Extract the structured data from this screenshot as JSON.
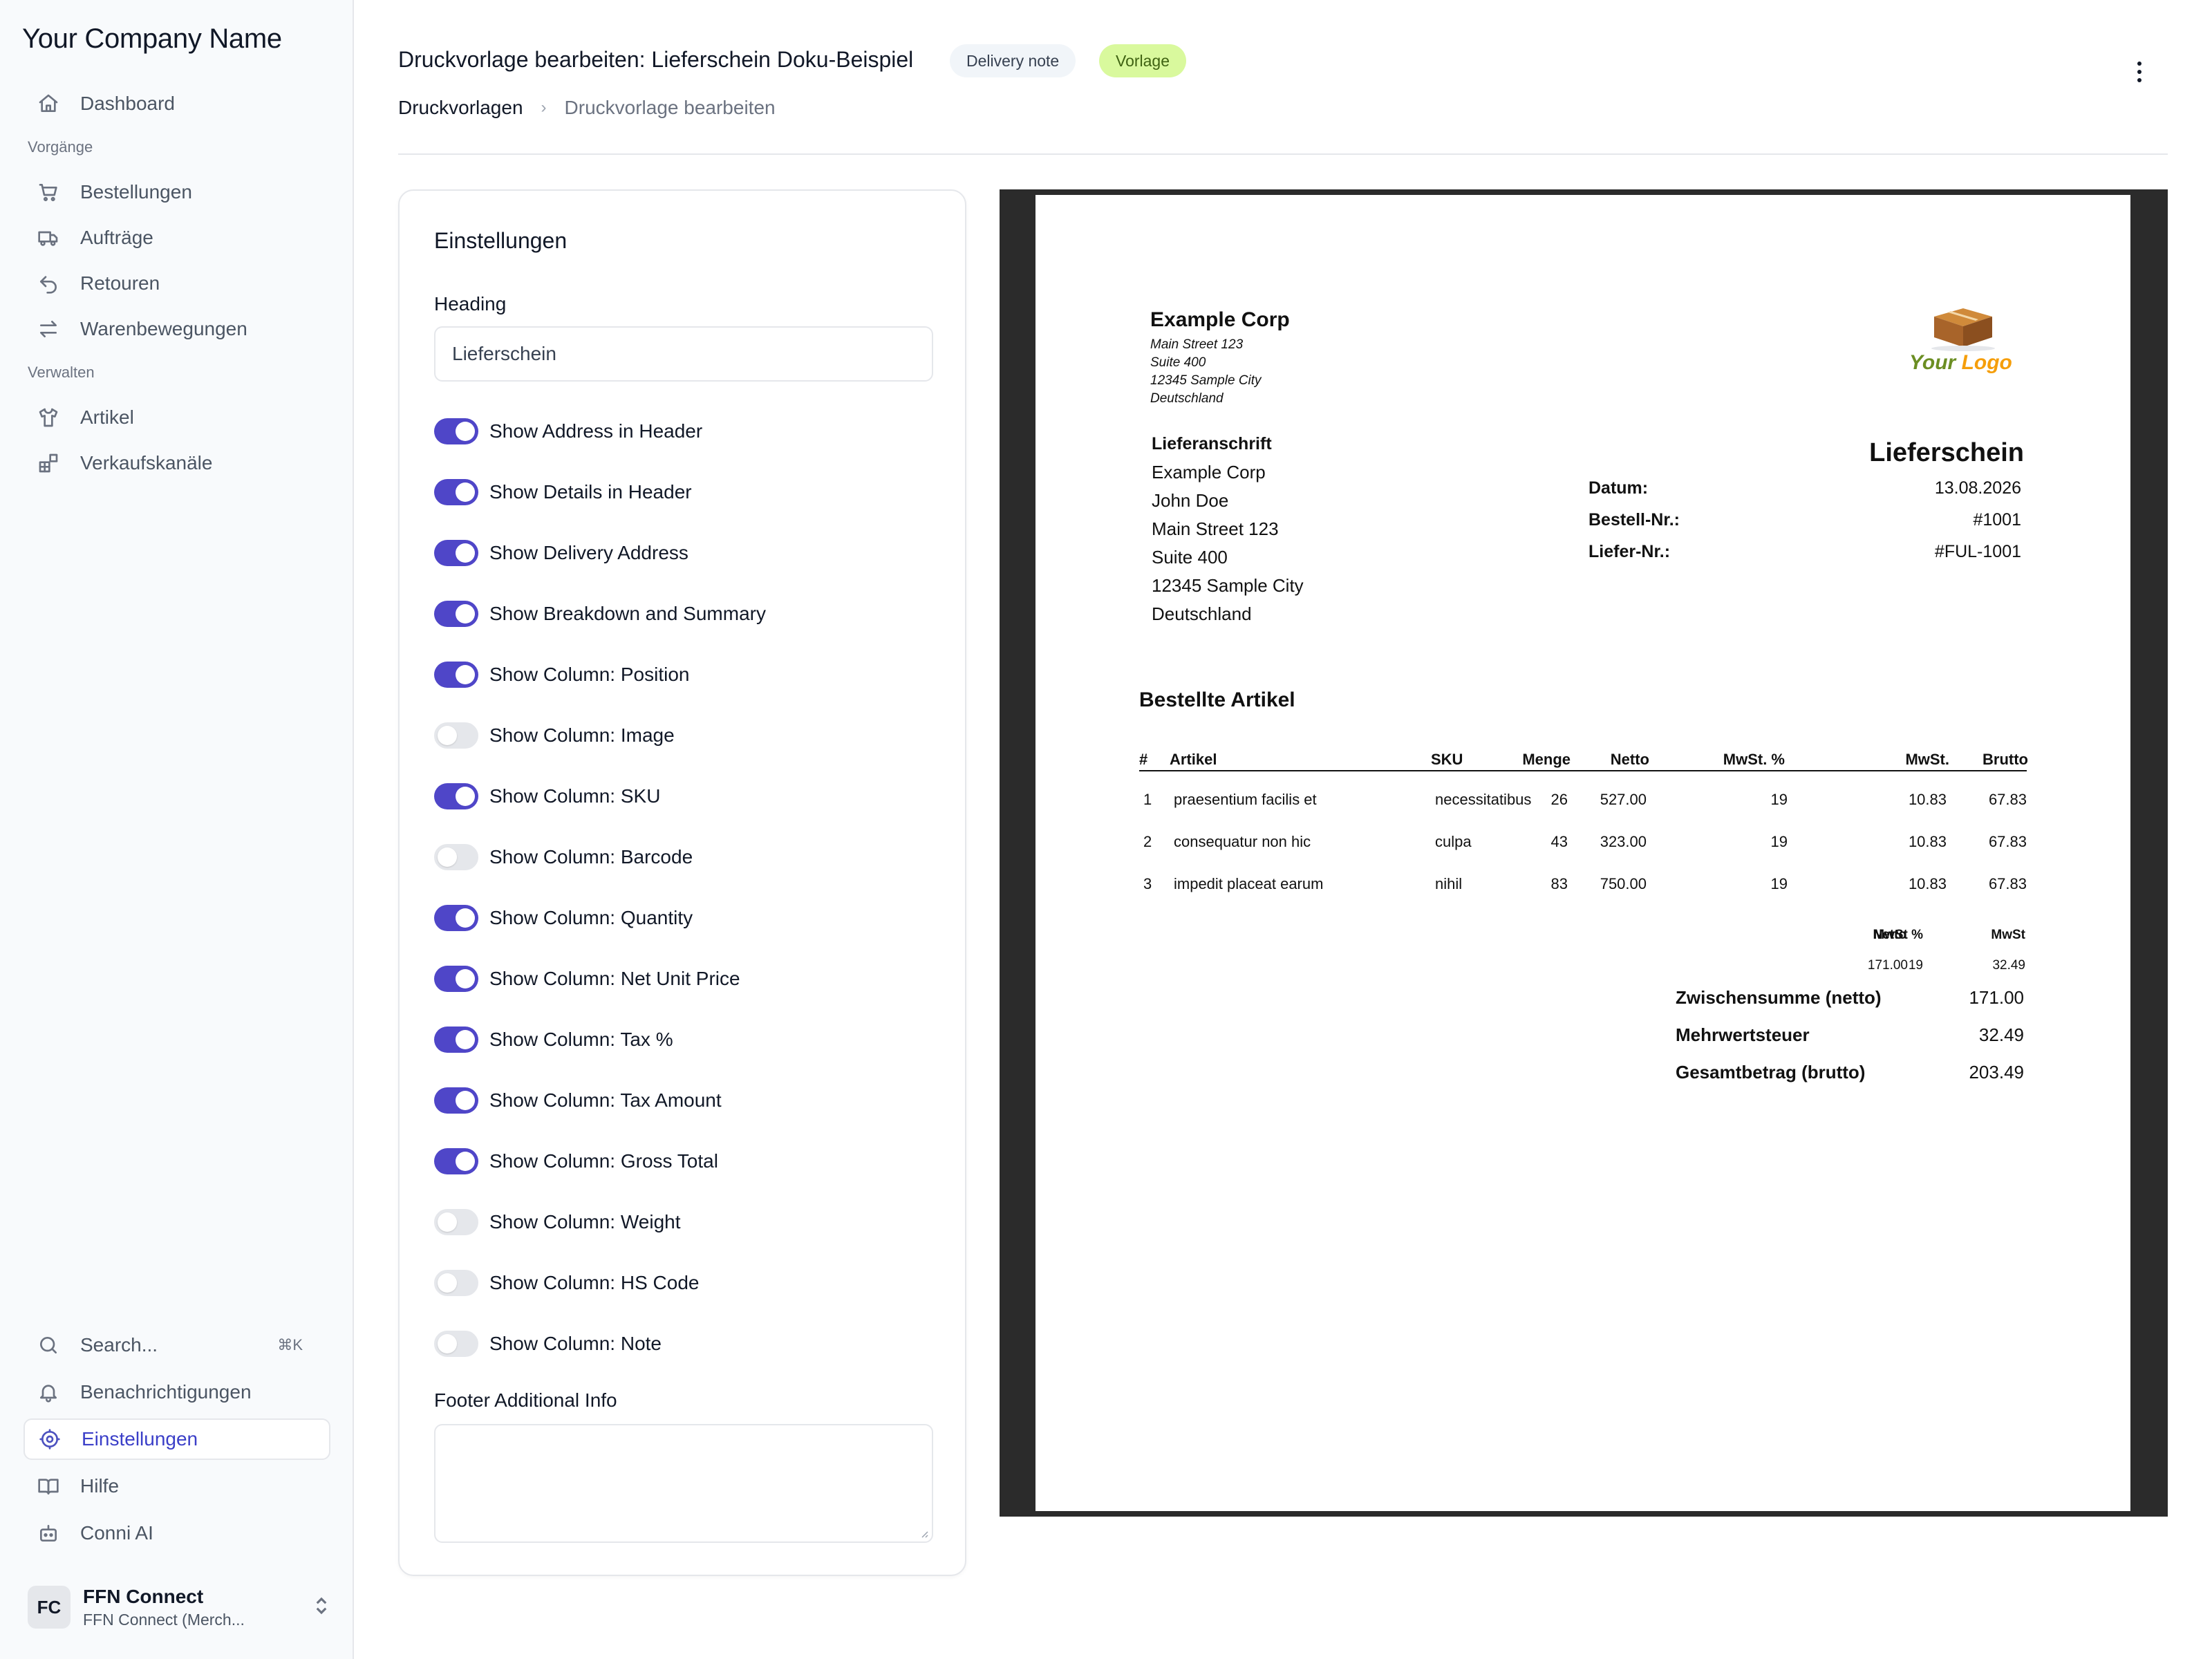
{
  "sidebar": {
    "brand": "Your Company Name",
    "dashboard": "Dashboard",
    "section_processes": "Vorgänge",
    "orders": "Bestellungen",
    "jobs": "Aufträge",
    "returns": "Retouren",
    "movements": "Warenbewegungen",
    "section_manage": "Verwalten",
    "articles": "Artikel",
    "channels": "Verkaufskanäle",
    "search": "Search...",
    "search_shortcut": "⌘K",
    "notifications": "Benachrichtigungen",
    "settings": "Einstellungen",
    "help": "Hilfe",
    "ai": "Conni AI",
    "user": {
      "initials": "FC",
      "name": "FFN Connect",
      "subtitle": "FFN Connect (Merch..."
    }
  },
  "header": {
    "title": "Druckvorlage bearbeiten: Lieferschein Doku-Beispiel",
    "badge_type": "Delivery note",
    "badge_status": "Vorlage",
    "breadcrumb_parent": "Druckvorlagen",
    "breadcrumb_current": "Druckvorlage bearbeiten"
  },
  "settings": {
    "title": "Einstellungen",
    "heading_label": "Heading",
    "heading_value": "Lieferschein",
    "toggles": [
      {
        "label": "Show Address in Header",
        "on": true
      },
      {
        "label": "Show Details in Header",
        "on": true
      },
      {
        "label": "Show Delivery Address",
        "on": true
      },
      {
        "label": "Show Breakdown and Summary",
        "on": true
      },
      {
        "label": "Show Column: Position",
        "on": true
      },
      {
        "label": "Show Column: Image",
        "on": false
      },
      {
        "label": "Show Column: SKU",
        "on": true
      },
      {
        "label": "Show Column: Barcode",
        "on": false
      },
      {
        "label": "Show Column: Quantity",
        "on": true
      },
      {
        "label": "Show Column: Net Unit Price",
        "on": true
      },
      {
        "label": "Show Column: Tax %",
        "on": true
      },
      {
        "label": "Show Column: Tax Amount",
        "on": true
      },
      {
        "label": "Show Column: Gross Total",
        "on": true
      },
      {
        "label": "Show Column: Weight",
        "on": false
      },
      {
        "label": "Show Column: HS Code",
        "on": false
      },
      {
        "label": "Show Column: Note",
        "on": false
      }
    ],
    "footer_label": "Footer Additional Info",
    "footer_value": ""
  },
  "preview": {
    "company": {
      "name": "Example Corp",
      "lines": [
        "Main Street 123",
        "Suite 400",
        "12345 Sample City",
        "Deutschland"
      ]
    },
    "logo": {
      "word1": "Your",
      "word2": "Logo"
    },
    "delivery_address": {
      "title": "Lieferanschrift",
      "lines": [
        "Example Corp",
        "John Doe",
        "Main Street 123",
        "Suite 400",
        "12345 Sample City",
        "Deutschland"
      ]
    },
    "heading": "Lieferschein",
    "meta": [
      {
        "label": "Datum:",
        "value": "13.08.2026"
      },
      {
        "label": "Bestell-Nr.:",
        "value": "#1001"
      },
      {
        "label": "Liefer-Nr.:",
        "value": "#FUL-1001"
      }
    ],
    "items_title": "Bestellte Artikel",
    "columns": [
      "#",
      "Artikel",
      "SKU",
      "Menge",
      "Netto",
      "MwSt. %",
      "MwSt.",
      "Brutto"
    ],
    "rows": [
      [
        "1",
        "praesentium facilis et",
        "necessitatibus",
        "26",
        "527.00",
        "19",
        "10.83",
        "67.83"
      ],
      [
        "2",
        "consequatur non hic",
        "culpa",
        "43",
        "323.00",
        "19",
        "10.83",
        "67.83"
      ],
      [
        "3",
        "impedit placeat earum",
        "nihil",
        "83",
        "750.00",
        "19",
        "10.83",
        "67.83"
      ]
    ],
    "breakdown": {
      "headers": [
        "Netto",
        "MwSt %",
        "MwSt"
      ],
      "values": [
        "171.00",
        "19",
        "32.49"
      ]
    },
    "totals": [
      {
        "label": "Zwischensumme (netto)",
        "value": "171.00"
      },
      {
        "label": "Mehrwertsteuer",
        "value": "32.49"
      },
      {
        "label": "Gesamtbetrag (brutto)",
        "value": "203.49"
      }
    ]
  },
  "colors": {
    "accent": "#4f46c8",
    "badge_green_bg": "#d9f99d",
    "sidebar_bg": "#f8fafc"
  }
}
